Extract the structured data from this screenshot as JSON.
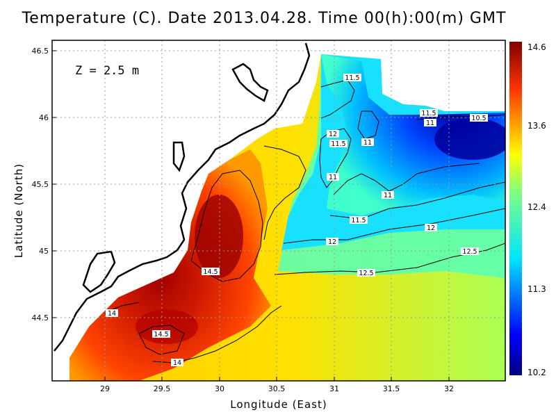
{
  "title": "Temperature (C). Date 2013.04.28. Time 00(h):00(m) GMT",
  "depth_label": "Z = 2.5 m",
  "xlabel": "Longitude (East)",
  "ylabel": "Latitude (North)",
  "x_ticks": [
    "29",
    "29.5",
    "30",
    "30.5",
    "31",
    "31.5",
    "32"
  ],
  "y_ticks": [
    "46.5",
    "46",
    "45.5",
    "45",
    "44.5"
  ],
  "colorbar_ticks": [
    "14.6",
    "13.6",
    "12.4",
    "11.3",
    "10.2"
  ],
  "chart_data": {
    "type": "heatmap",
    "title": "Temperature (C). Date 2013.04.28. Time 00(h):00(m) GMT",
    "xlabel": "Longitude (East)",
    "ylabel": "Latitude (North)",
    "xlim": [
      28.55,
      32.45
    ],
    "ylim": [
      44.05,
      46.55
    ],
    "colorbar_range": [
      10.2,
      14.6
    ],
    "grid": true,
    "contour_labels": [
      "11.5",
      "11.5",
      "10.5",
      "11",
      "12",
      "11.5",
      "11",
      "11",
      "11",
      "11.5",
      "12",
      "12",
      "12.5",
      "12.5",
      "14.5",
      "14",
      "14.5",
      "14"
    ],
    "colors": {
      "cold": "#00007f",
      "mid": "#00e5ff",
      "warm_mid": "#ffff00",
      "hot": "#7f0000"
    }
  }
}
